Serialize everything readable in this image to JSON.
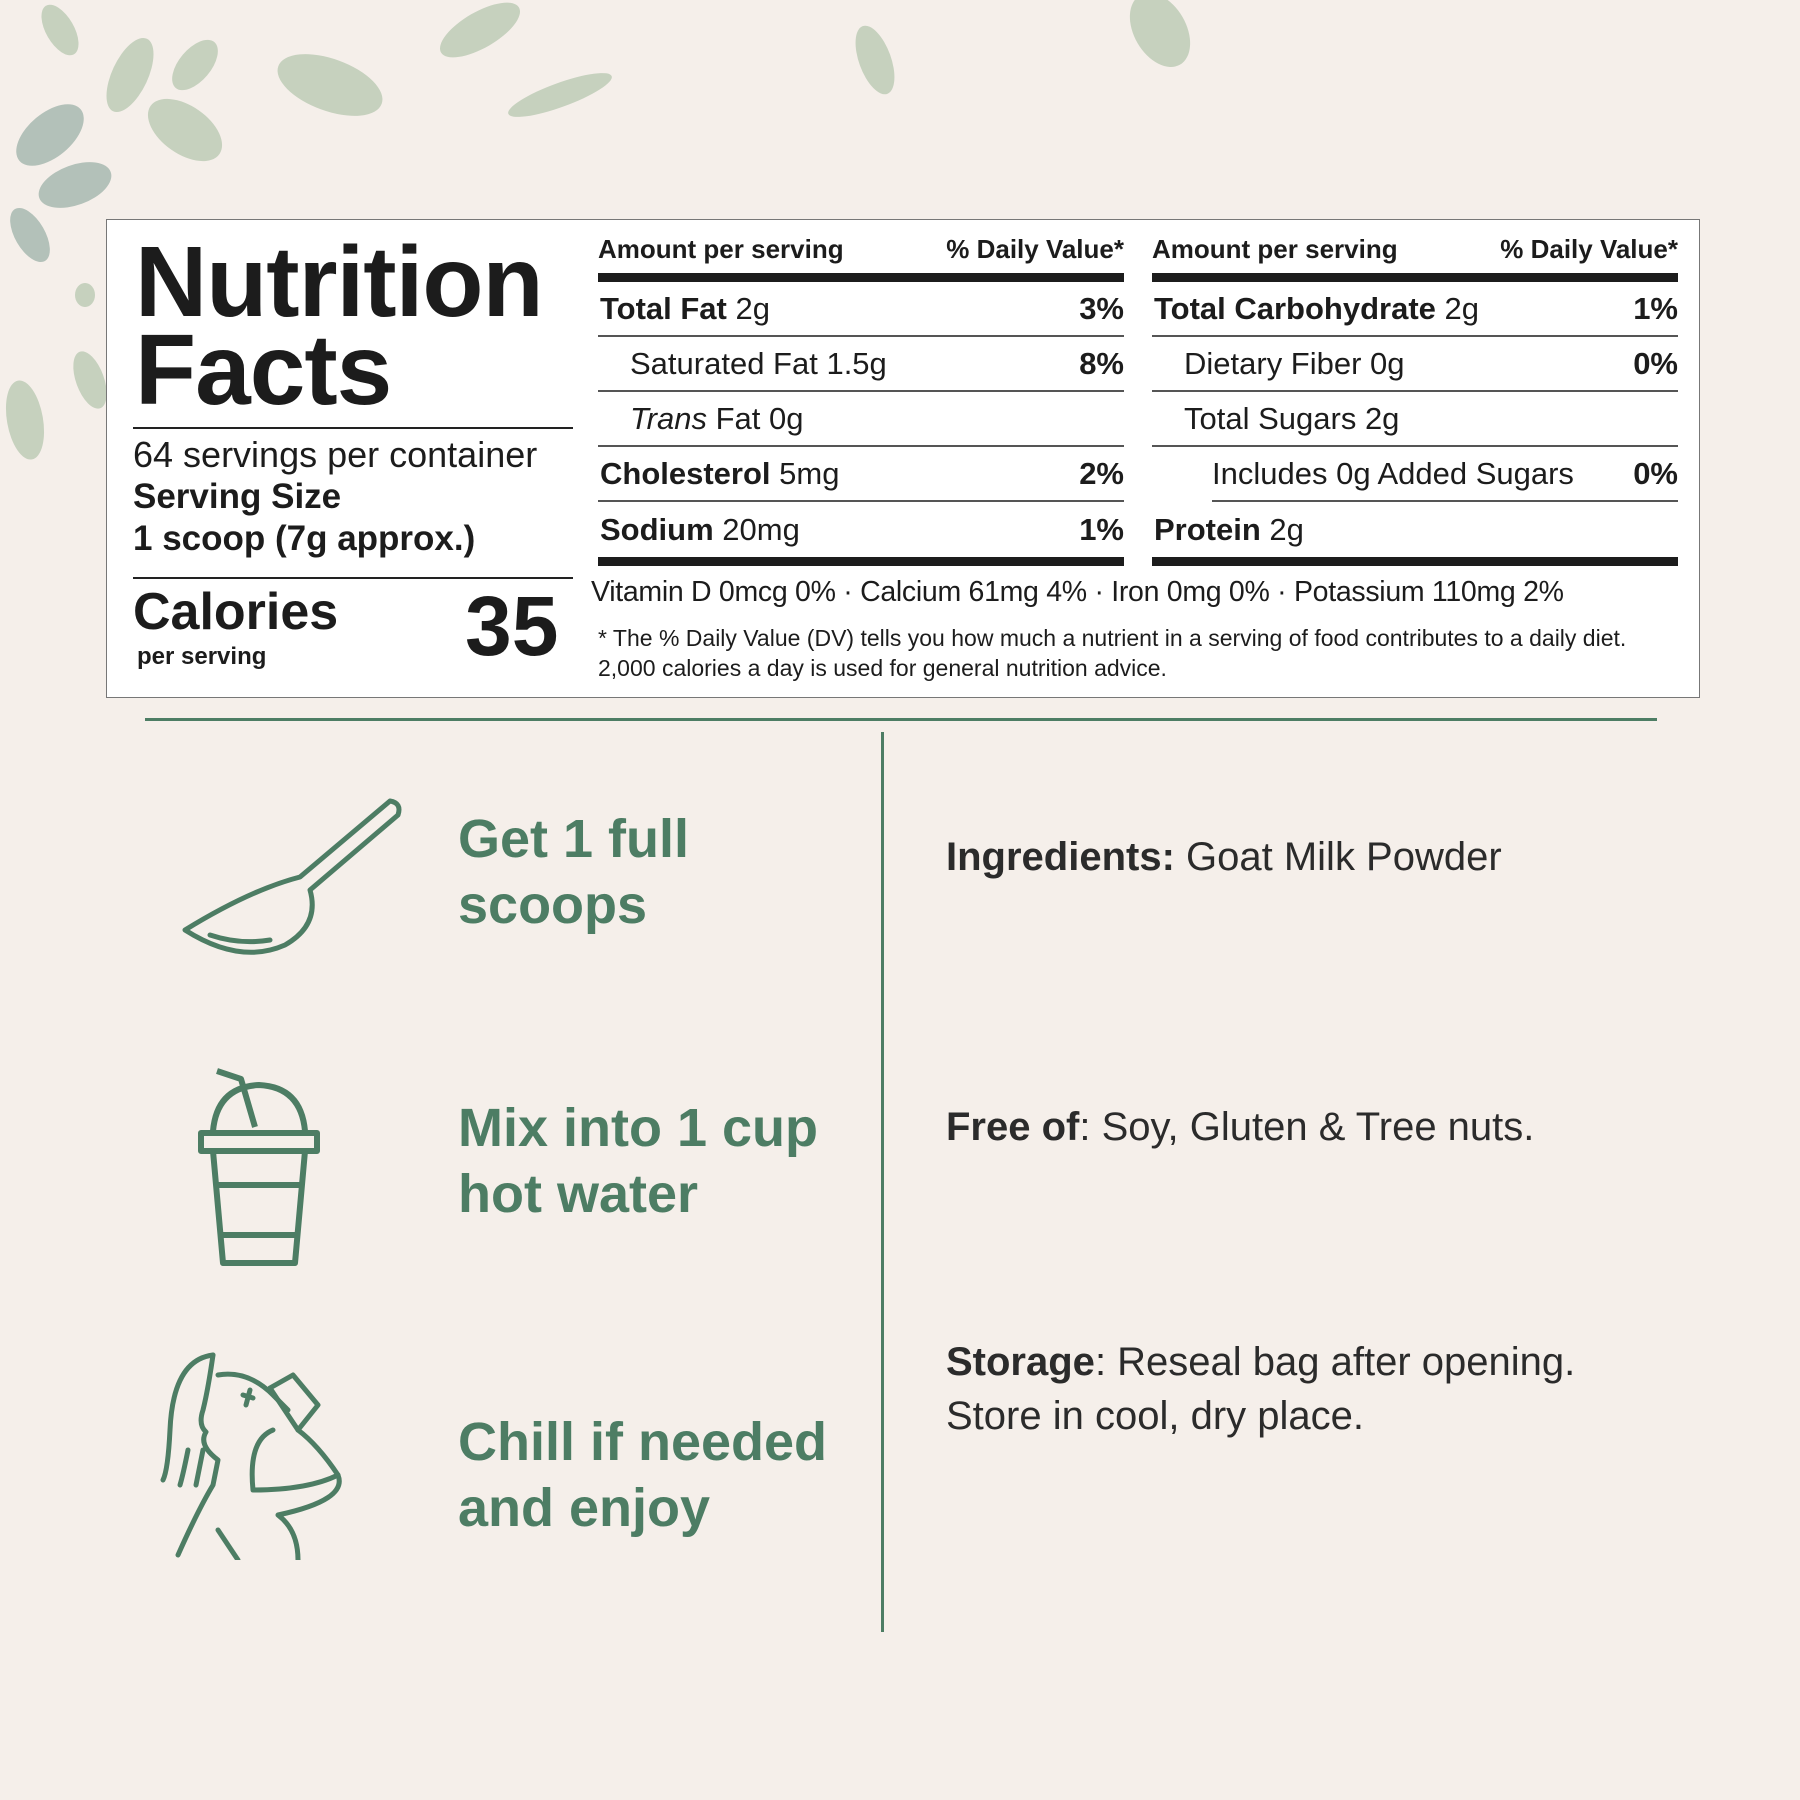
{
  "label": {
    "title_line1": "Nutrition",
    "title_line2": "Facts",
    "servings_per_container": "64 servings per container",
    "serving_size_label": "Serving Size",
    "serving_size_value": "1 scoop (7g approx.)",
    "calories_label": "Calories",
    "calories_sub": "per serving",
    "calories_value": "35",
    "columns": [
      {
        "header_amount": "Amount per serving",
        "header_dv": "% Daily Value*",
        "rows": [
          {
            "name": "Total Fat",
            "amount": " 2g",
            "dv": "3%",
            "bold": true,
            "indent": 0
          },
          {
            "name": "Saturated Fat",
            "amount": " 1.5g",
            "dv": "8%",
            "bold": false,
            "indent": 1
          },
          {
            "name": "Trans",
            "amount": " Fat 0g",
            "dv": "",
            "bold": false,
            "italic": true,
            "indent": 1
          },
          {
            "name": "Cholesterol",
            "amount": " 5mg",
            "dv": "2%",
            "bold": true,
            "indent": 0
          },
          {
            "name": "Sodium",
            "amount": " 20mg",
            "dv": "1%",
            "bold": true,
            "indent": 0
          }
        ]
      },
      {
        "header_amount": "Amount per serving",
        "header_dv": "% Daily Value*",
        "rows": [
          {
            "name": "Total Carbohydrate",
            "amount": " 2g",
            "dv": "1%",
            "bold": true,
            "indent": 0
          },
          {
            "name": "Dietary Fiber",
            "amount": " 0g",
            "dv": "0%",
            "bold": false,
            "indent": 1
          },
          {
            "name": "Total Sugars",
            "amount": " 2g",
            "dv": "",
            "bold": false,
            "indent": 1
          },
          {
            "name": "Includes 0g Added Sugars",
            "amount": "",
            "dv": "0%",
            "bold": false,
            "indent": 2
          },
          {
            "name": "Protein",
            "amount": " 2g",
            "dv": "",
            "bold": true,
            "indent": 0
          }
        ]
      }
    ],
    "vitamins": "Vitamin D 0mcg 0% · Calcium 61mg 4% · Iron 0mg 0% · Potassium 110mg 2%",
    "footnote": "* The % Daily Value (DV) tells you how much a nutrient in a serving of food contributes to a daily diet. 2,000 calories a day is used for general nutrition advice."
  },
  "steps": [
    {
      "icon": "scoop-icon",
      "line1": "Get 1 full",
      "line2": "scoops"
    },
    {
      "icon": "cup-with-straw-icon",
      "line1": "Mix into 1 cup",
      "line2": "hot water"
    },
    {
      "icon": "woman-drinking-icon",
      "line1": "Chill if needed",
      "line2": "and enjoy"
    }
  ],
  "info": {
    "ingredients_label": "Ingredients:",
    "ingredients_value": " Goat Milk Powder",
    "free_of_label": "Free of",
    "free_of_value": ": Soy, Gluten & Tree nuts.",
    "storage_label": "Storage",
    "storage_line1": ": Reseal bag after opening.",
    "storage_line2": "Store in cool, dry place."
  },
  "colors": {
    "background": "#f5efea",
    "accent_green": "#4d7d64",
    "text": "#1c1c1c"
  }
}
